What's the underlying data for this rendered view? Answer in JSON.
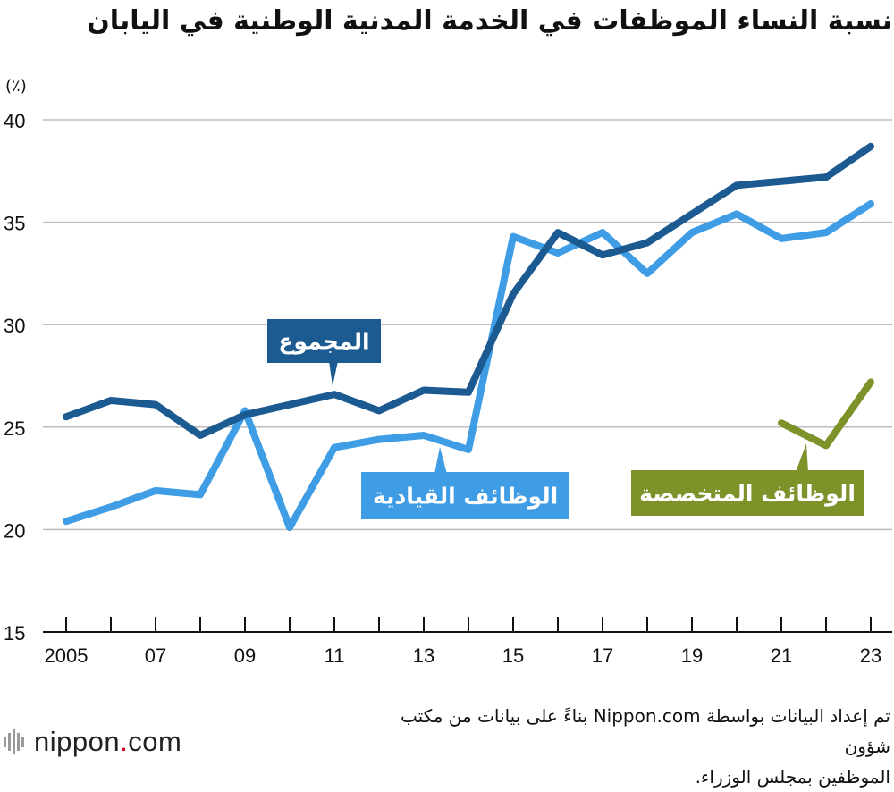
{
  "title": "نسبة النساء الموظفات في الخدمة المدنية الوطنية في اليابان",
  "footer": {
    "source_line1": "تم إعداد البيانات بواسطة Nippon.com بناءً على بيانات من مكتب شؤون",
    "source_line2": "الموظفين بمجلس الوزراء.",
    "logo_text": "nippon",
    "logo_dot": ".",
    "logo_suffix": "com"
  },
  "colors": {
    "total": "#1c5a92",
    "managerial": "#3f9de6",
    "specialist": "#7d9229",
    "grid": "#bdbdbd",
    "axis": "#111111"
  },
  "chart_data": {
    "type": "line",
    "title": "نسبة النساء الموظفات في الخدمة المدنية الوطنية في اليابان",
    "ylabel": "(٪)",
    "xlabel": "",
    "x": [
      2005,
      2006,
      2007,
      2008,
      2009,
      2010,
      2011,
      2012,
      2013,
      2014,
      2015,
      2016,
      2017,
      2018,
      2019,
      2020,
      2021,
      2022,
      2023
    ],
    "xtick_values": [
      2005,
      2007,
      2009,
      2011,
      2013,
      2015,
      2017,
      2019,
      2021,
      2023
    ],
    "xtick_labels": [
      "2005",
      "07",
      "09",
      "11",
      "13",
      "15",
      "17",
      "19",
      "21",
      "23"
    ],
    "ylim": [
      15,
      40
    ],
    "yticks": [
      15,
      20,
      25,
      30,
      35,
      40
    ],
    "grid": true,
    "series": [
      {
        "name": "المجموع",
        "key": "total",
        "values": [
          25.5,
          26.3,
          26.1,
          24.6,
          25.6,
          26.1,
          26.6,
          25.8,
          26.8,
          26.7,
          31.5,
          34.5,
          33.4,
          34.0,
          35.4,
          36.8,
          37.0,
          37.2,
          38.7
        ]
      },
      {
        "name": "الوظائف القيادية",
        "key": "managerial",
        "values": [
          20.4,
          21.1,
          21.9,
          21.7,
          25.8,
          20.1,
          24.0,
          24.4,
          24.6,
          23.9,
          34.3,
          33.5,
          34.5,
          32.5,
          34.5,
          35.4,
          34.2,
          34.5,
          35.9
        ]
      },
      {
        "name": "الوظائف المتخصصة",
        "key": "specialist",
        "values": [
          null,
          null,
          null,
          null,
          null,
          null,
          null,
          null,
          null,
          null,
          null,
          null,
          null,
          null,
          null,
          null,
          25.2,
          24.1,
          27.2
        ]
      }
    ]
  }
}
